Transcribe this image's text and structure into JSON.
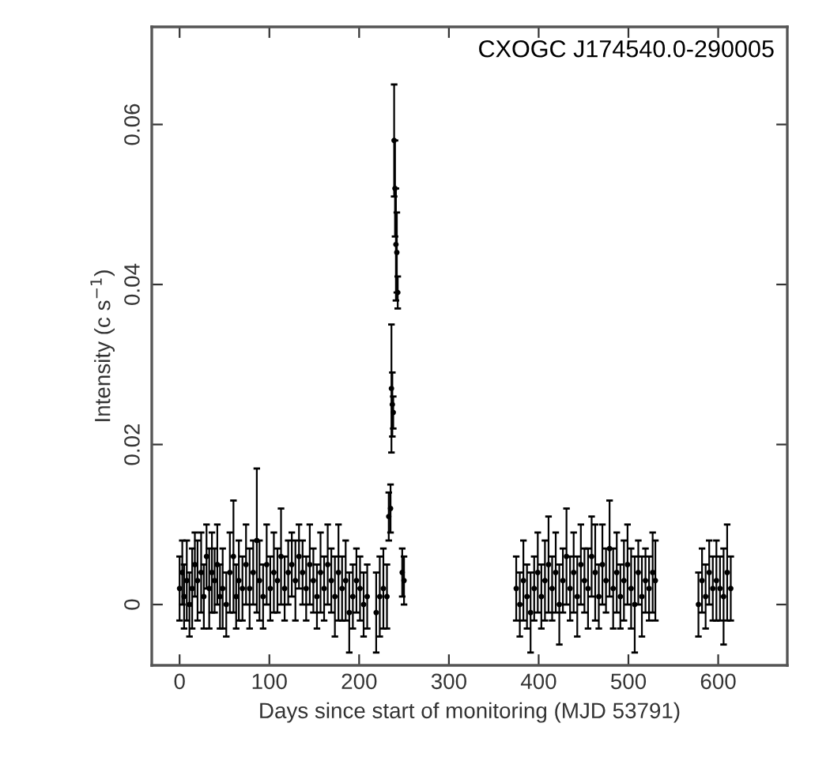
{
  "chart_data": {
    "type": "scatter",
    "xlabel": "Days since start of monitoring (MJD 53791)",
    "ylabel": "Intensity (c s$^{−1}$)",
    "annotations": [
      "CXOGC J174540.0-290005"
    ],
    "xlim": [
      -31,
      677
    ],
    "ylim": [
      -0.0076,
      0.0722
    ],
    "xticks": [
      0,
      100,
      200,
      300,
      400,
      500,
      600
    ],
    "yticks": [
      0,
      0.02,
      0.04,
      0.06
    ],
    "marker": "circle",
    "grid": false,
    "series": [
      {
        "color": "#000000",
        "x": [
          0,
          3,
          5,
          8,
          11,
          14,
          17,
          20,
          24,
          27,
          30,
          33,
          36,
          39,
          42,
          45,
          48,
          52,
          56,
          60,
          63,
          66,
          70,
          74,
          78,
          82,
          86,
          89,
          93,
          97,
          101,
          105,
          109,
          113,
          117,
          121,
          125,
          129,
          133,
          137,
          141,
          145,
          149,
          153,
          157,
          161,
          165,
          169,
          173,
          177,
          181,
          185,
          189,
          193,
          197,
          201,
          205,
          209,
          219,
          223,
          227,
          231,
          233,
          235,
          236,
          237,
          238,
          239,
          240,
          241,
          242,
          243,
          248,
          250,
          375,
          379,
          383,
          387,
          391,
          395,
          399,
          403,
          407,
          411,
          415,
          419,
          423,
          427,
          431,
          435,
          439,
          443,
          447,
          451,
          455,
          459,
          463,
          467,
          471,
          475,
          479,
          483,
          487,
          491,
          495,
          499,
          503,
          507,
          511,
          515,
          519,
          523,
          527,
          530,
          578,
          582,
          586,
          590,
          594,
          598,
          602,
          606,
          610,
          614
        ],
        "values": [
          0.002,
          0.004,
          0.001,
          0.003,
          0.0,
          0.002,
          0.005,
          0.003,
          0.004,
          0.001,
          0.006,
          0.002,
          0.004,
          0.003,
          0.005,
          0.001,
          0.002,
          0.0,
          0.004,
          0.006,
          0.001,
          0.003,
          0.002,
          0.005,
          0.002,
          0.004,
          0.008,
          0.003,
          0.001,
          0.005,
          0.002,
          0.004,
          0.003,
          0.006,
          0.002,
          0.004,
          0.005,
          0.003,
          0.006,
          0.004,
          0.002,
          0.005,
          0.003,
          0.001,
          0.004,
          0.002,
          0.005,
          0.003,
          0.001,
          0.004,
          0.002,
          0.003,
          -0.001,
          0.001,
          0.003,
          0.002,
          0.0,
          0.001,
          -0.001,
          0.001,
          0.002,
          0.001,
          0.011,
          0.012,
          0.027,
          0.025,
          0.024,
          0.058,
          0.052,
          0.045,
          0.044,
          0.039,
          0.004,
          0.003,
          0.002,
          0.0,
          0.003,
          0.001,
          -0.001,
          0.002,
          0.004,
          0.001,
          0.003,
          0.005,
          0.002,
          0.004,
          0.0,
          0.003,
          0.006,
          0.002,
          0.004,
          0.001,
          0.005,
          0.003,
          0.002,
          0.006,
          0.004,
          0.001,
          0.005,
          0.003,
          0.007,
          0.002,
          0.004,
          0.001,
          0.003,
          0.005,
          0.002,
          0.0,
          0.004,
          0.001,
          0.003,
          0.002,
          0.004,
          0.003,
          0.0,
          0.003,
          0.001,
          0.004,
          0.002,
          0.003,
          0.002,
          0.001,
          0.004,
          0.002
        ],
        "errors": [
          0.004,
          0.004,
          0.004,
          0.005,
          0.004,
          0.005,
          0.004,
          0.005,
          0.005,
          0.004,
          0.004,
          0.005,
          0.005,
          0.004,
          0.005,
          0.004,
          0.005,
          0.004,
          0.005,
          0.007,
          0.004,
          0.005,
          0.004,
          0.005,
          0.005,
          0.004,
          0.009,
          0.005,
          0.004,
          0.005,
          0.004,
          0.005,
          0.004,
          0.006,
          0.004,
          0.004,
          0.004,
          0.005,
          0.004,
          0.004,
          0.004,
          0.005,
          0.004,
          0.004,
          0.005,
          0.004,
          0.005,
          0.004,
          0.005,
          0.006,
          0.004,
          0.005,
          0.005,
          0.004,
          0.004,
          0.004,
          0.004,
          0.004,
          0.005,
          0.005,
          0.005,
          0.004,
          0.003,
          0.003,
          0.008,
          0.004,
          0.002,
          0.007,
          0.006,
          0.007,
          0.005,
          0.002,
          0.003,
          0.003,
          0.004,
          0.004,
          0.005,
          0.004,
          0.005,
          0.004,
          0.005,
          0.004,
          0.005,
          0.006,
          0.004,
          0.005,
          0.005,
          0.004,
          0.006,
          0.004,
          0.005,
          0.005,
          0.005,
          0.004,
          0.005,
          0.005,
          0.006,
          0.004,
          0.005,
          0.004,
          0.006,
          0.005,
          0.005,
          0.004,
          0.005,
          0.005,
          0.005,
          0.006,
          0.004,
          0.005,
          0.004,
          0.004,
          0.005,
          0.005,
          0.004,
          0.004,
          0.004,
          0.004,
          0.004,
          0.005,
          0.004,
          0.006,
          0.006,
          0.004
        ]
      }
    ]
  }
}
